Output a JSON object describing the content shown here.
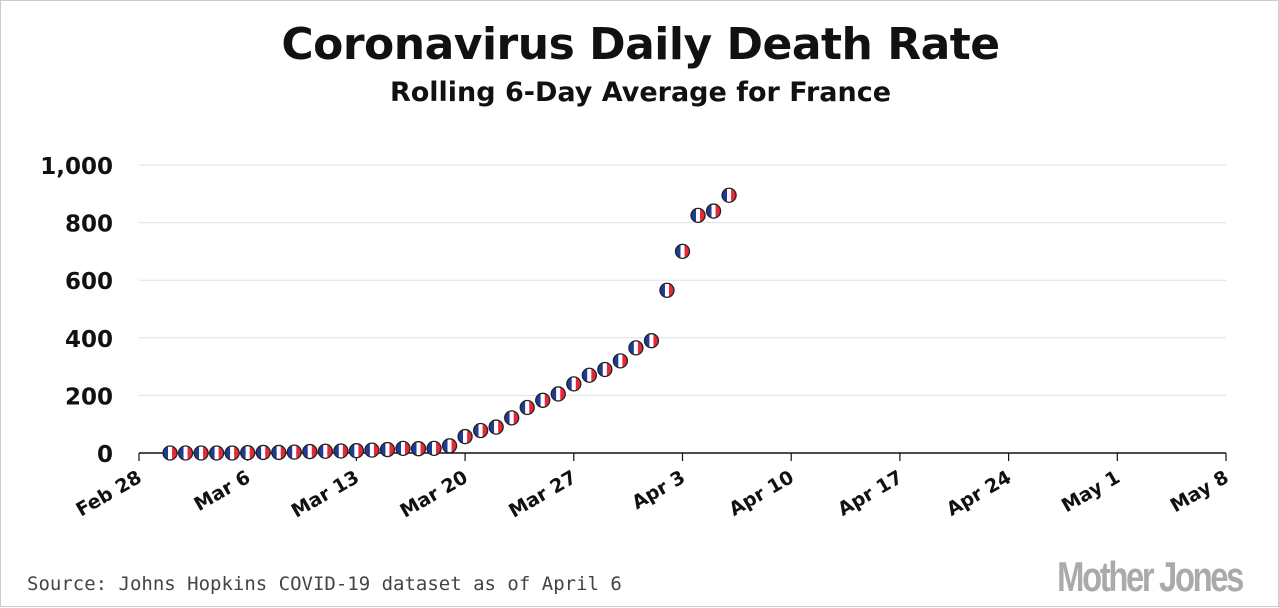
{
  "chart_data": {
    "type": "scatter",
    "title": "Coronavirus Daily Death Rate",
    "subtitle": "Rolling 6-Day Average for France",
    "xlabel": "",
    "ylabel": "",
    "ylim": [
      0,
      1000
    ],
    "yticks": [
      0,
      200,
      400,
      600,
      800,
      1000
    ],
    "ytick_labels": [
      "0",
      "200",
      "400",
      "600",
      "800",
      "1,000"
    ],
    "x_start": "Feb 28",
    "x_days_range": [
      0,
      70
    ],
    "xtick_days": [
      0,
      7,
      14,
      21,
      28,
      35,
      42,
      49,
      56,
      63,
      70
    ],
    "xtick_labels": [
      "Feb 28",
      "Mar 6",
      "Mar 13",
      "Mar 20",
      "Mar 27",
      "Apr 3",
      "Apr 10",
      "Apr 17",
      "Apr 24",
      "May 1",
      "May 8"
    ],
    "grid": true,
    "marker": "france-flag",
    "series": [
      {
        "name": "France",
        "x_days": [
          2,
          3,
          4,
          5,
          6,
          7,
          8,
          9,
          10,
          11,
          12,
          13,
          14,
          15,
          16,
          17,
          18,
          19,
          20,
          21,
          22,
          23,
          24,
          25,
          26,
          27,
          28,
          29,
          30,
          31,
          32,
          33,
          34,
          35,
          36,
          37,
          38
        ],
        "values": [
          0,
          0,
          0,
          0,
          0,
          1,
          2,
          2,
          3,
          5,
          6,
          7,
          8,
          10,
          12,
          16,
          15,
          16,
          25,
          57,
          78,
          90,
          122,
          158,
          183,
          205,
          240,
          270,
          290,
          320,
          365,
          390,
          565,
          700,
          825,
          840,
          895
        ]
      }
    ],
    "colors": {
      "blue": "#1f3b9a",
      "white": "#ffffff",
      "red": "#e8283a",
      "grid": "#e0e0e0"
    }
  },
  "source": "Source: Johns Hopkins COVID-19 dataset as of April 6",
  "logo": "Mother Jones"
}
